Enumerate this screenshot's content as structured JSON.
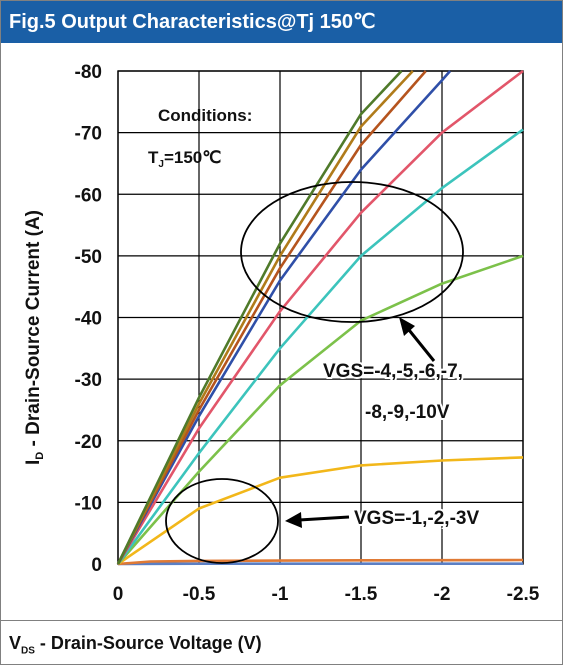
{
  "header": {
    "title": "Fig.5 Output Characteristics@Tj 150℃"
  },
  "footer": {
    "xlabel_main": "V",
    "xlabel_sub": "DS",
    "xlabel_rest": " - Drain-Source Voltage (V)"
  },
  "colors": {
    "header_bg": "#1a5fa6",
    "series": [
      "#4f7a2a",
      "#b07b1a",
      "#b5541e",
      "#2f4fa8",
      "#e2566a",
      "#3cc4bc",
      "#7cc14a",
      "#f2b71a",
      "#e07a35",
      "#5b7fc4"
    ]
  },
  "chart_data": {
    "type": "line",
    "title": "Fig.5 Output Characteristics@Tj 150℃",
    "xlabel": "VDS - Drain-Source Voltage (V)",
    "ylabel": "ID - Drain-Source Current (A)",
    "ylabel_main": "I",
    "ylabel_sub": "D",
    "ylabel_rest": " - Drain-Source Current (A)",
    "xlim": [
      0,
      -2.5
    ],
    "ylim": [
      0,
      -80
    ],
    "xticks": [
      0,
      -0.5,
      -1,
      -1.5,
      -2,
      -2.5
    ],
    "xtick_labels": [
      "0",
      "-0.5",
      "-1",
      "-1.5",
      "-2",
      "-2.5"
    ],
    "yticks": [
      0,
      -10,
      -20,
      -30,
      -40,
      -50,
      -60,
      -70,
      -80
    ],
    "ytick_labels": [
      "0",
      "-10",
      "-20",
      "-30",
      "-40",
      "-50",
      "-60",
      "-70",
      "-80"
    ],
    "grid": true,
    "series": [
      {
        "x": [
          0,
          -0.5,
          -1.0,
          -1.5,
          -1.75
        ],
        "y": [
          0,
          -27,
          -52,
          -73,
          -80
        ]
      },
      {
        "x": [
          0,
          -0.5,
          -1.0,
          -1.5,
          -1.82
        ],
        "y": [
          0,
          -26,
          -50,
          -71,
          -80
        ]
      },
      {
        "x": [
          0,
          -0.5,
          -1.0,
          -1.5,
          -1.9
        ],
        "y": [
          0,
          -25,
          -48,
          -68,
          -80
        ]
      },
      {
        "x": [
          0,
          -0.5,
          -1.0,
          -1.5,
          -2.0,
          -2.05
        ],
        "y": [
          0,
          -24,
          -46,
          -64,
          -78.5,
          -80
        ]
      },
      {
        "x": [
          0,
          -0.5,
          -1.0,
          -1.5,
          -2.0,
          -2.5
        ],
        "y": [
          0,
          -22,
          -41,
          -57,
          -70,
          -80
        ]
      },
      {
        "x": [
          0,
          -0.5,
          -1.0,
          -1.5,
          -2.0,
          -2.5
        ],
        "y": [
          0,
          -18,
          -35,
          -50,
          -61,
          -70.5
        ]
      },
      {
        "x": [
          0,
          -0.5,
          -1.0,
          -1.5,
          -2.0,
          -2.5
        ],
        "y": [
          0,
          -15,
          -29,
          -39.5,
          -45.5,
          -50
        ]
      },
      {
        "x": [
          0,
          -0.5,
          -1.0,
          -1.5,
          -2.0,
          -2.5
        ],
        "y": [
          0,
          -9,
          -14,
          -16,
          -16.8,
          -17.3
        ]
      },
      {
        "x": [
          0,
          -0.2,
          -0.5,
          -1.0,
          -1.5,
          -2.0,
          -2.5
        ],
        "y": [
          0,
          -0.4,
          -0.5,
          -0.55,
          -0.6,
          -0.62,
          -0.65
        ]
      },
      {
        "x": [
          0,
          -0.5,
          -1.0,
          -1.5,
          -2.0,
          -2.5
        ],
        "y": [
          0,
          -0.05,
          -0.05,
          -0.05,
          -0.05,
          -0.05
        ]
      }
    ],
    "annotations": {
      "conditions": "Conditions:",
      "tj_main": "T",
      "tj_sub": "J",
      "tj_rest": "=150℃",
      "upper_group_line1": "VGS=-4,-5,-6,-7,",
      "upper_group_line2": "-8,-9,-10V",
      "lower_group": "VGS=-1,-2,-3V"
    }
  }
}
